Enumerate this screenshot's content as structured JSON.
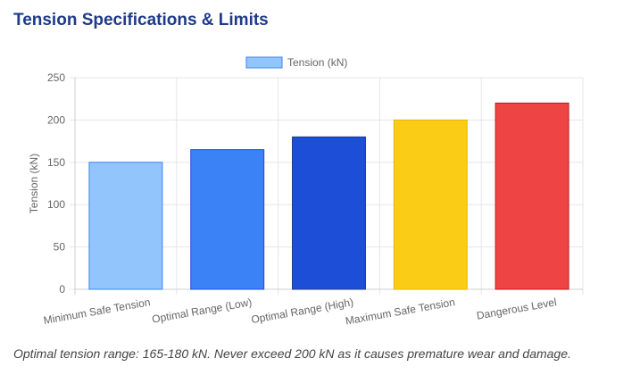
{
  "header": {
    "title": "Tension Specifications & Limits"
  },
  "footer": {
    "note": "Optimal tension range: 165-180 kN. Never exceed 200 kN as it causes premature wear and damage."
  },
  "chart_data": {
    "type": "bar",
    "categories": [
      "Minimum Safe Tension",
      "Optimal Range (Low)",
      "Optimal Range (High)",
      "Maximum Safe Tension",
      "Dangerous Level"
    ],
    "series": [
      {
        "name": "Tension (kN)",
        "values": [
          150,
          165,
          180,
          200,
          220
        ],
        "colors": [
          "#93c5fd",
          "#3b82f6",
          "#1d4ed8",
          "#facc15",
          "#ef4444"
        ],
        "border_colors": [
          "#3b82f6",
          "#1d4ed8",
          "#1e3a8a",
          "#eab308",
          "#b91c1c"
        ]
      }
    ],
    "ylabel": "Tension (kN)",
    "xlabel": "",
    "ylim": [
      0,
      250
    ],
    "yticks": [
      0,
      50,
      100,
      150,
      200,
      250
    ],
    "grid": true,
    "legend": "top-center",
    "legend_color": "#93c5fd",
    "legend_border": "#3b82f6"
  }
}
